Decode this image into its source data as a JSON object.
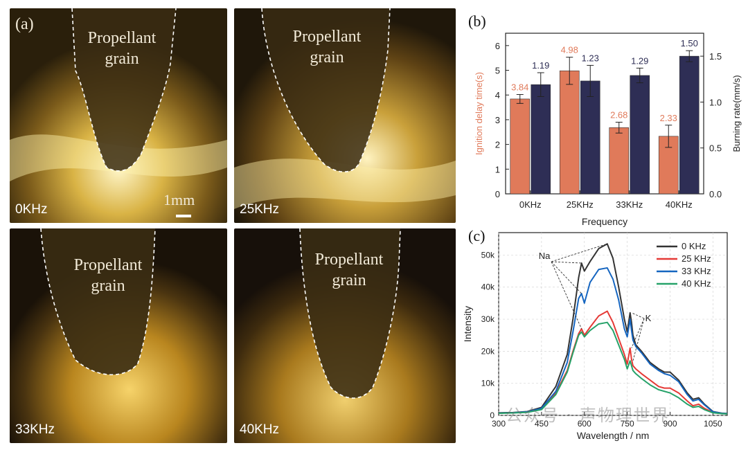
{
  "panel_a": {
    "letter": "(a)",
    "grain_label_line1": "Propellant",
    "grain_label_line2": "grain",
    "scale_label": "1mm",
    "photos": [
      {
        "frequency": "0KHz"
      },
      {
        "frequency": "25KHz"
      },
      {
        "frequency": "33KHz"
      },
      {
        "frequency": "40KHz"
      }
    ]
  },
  "chart_data": [
    {
      "panel": "(b)",
      "type": "bar",
      "categories": [
        "0KHz",
        "25KHz",
        "33KHz",
        "40KHz"
      ],
      "xlabel": "Frequency",
      "ylabel_left": "Ignition delay time(s)",
      "ylabel_right": "Burning rate(mm/s)",
      "ylim_left": [
        0,
        6.5
      ],
      "ylim_right": [
        0,
        1.75
      ],
      "yticks_left": [
        "0",
        "1",
        "2",
        "3",
        "4",
        "5",
        "6"
      ],
      "yticks_right": [
        "0.0",
        "0.5",
        "1.0",
        "1.5"
      ],
      "series": [
        {
          "name": "Ignition delay time",
          "axis": "left",
          "color": "#e07a5a",
          "values": [
            3.84,
            4.98,
            2.68,
            2.33
          ],
          "labels": [
            "3.84",
            "4.98",
            "2.68",
            "2.33"
          ],
          "errors": [
            0.18,
            0.55,
            0.22,
            0.45
          ]
        },
        {
          "name": "Burning rate",
          "axis": "right",
          "color": "#2e2e55",
          "values": [
            1.19,
            1.23,
            1.29,
            1.5
          ],
          "labels": [
            "1.19",
            "1.23",
            "1.29",
            "1.50"
          ],
          "errors": [
            0.13,
            0.17,
            0.08,
            0.06
          ]
        }
      ]
    },
    {
      "panel": "(c)",
      "type": "line",
      "xlabel": "Wavelength / nm",
      "ylabel": "Intensity",
      "xlim": [
        300,
        1100
      ],
      "ylim": [
        0,
        57000
      ],
      "xticks": [
        "300",
        "450",
        "600",
        "750",
        "900",
        "1050"
      ],
      "yticks": [
        "0",
        "10k",
        "20k",
        "30k",
        "40k",
        "50k"
      ],
      "legend_position": "top-right",
      "annotations": [
        "Na",
        "K"
      ],
      "x": [
        300,
        350,
        400,
        450,
        500,
        540,
        560,
        580,
        590,
        600,
        620,
        650,
        680,
        700,
        720,
        740,
        750,
        760,
        765,
        770,
        780,
        800,
        830,
        860,
        880,
        900,
        930,
        960,
        980,
        1000,
        1020,
        1050,
        1080,
        1100
      ],
      "series": [
        {
          "name": "0 KHz",
          "color": "#333333",
          "values": [
            800,
            900,
            1200,
            2500,
            9000,
            19000,
            30000,
            43000,
            47500,
            45000,
            48000,
            52000,
            53500,
            49000,
            40000,
            30000,
            26000,
            32000,
            29000,
            25000,
            22000,
            20000,
            16500,
            14500,
            13500,
            13500,
            11000,
            7000,
            5000,
            5500,
            3500,
            1200,
            700,
            600
          ]
        },
        {
          "name": "25 KHz",
          "color": "#e53935",
          "values": [
            700,
            800,
            1000,
            2000,
            7000,
            14000,
            20000,
            25500,
            27000,
            25000,
            27500,
            31000,
            32500,
            29000,
            24000,
            19000,
            16000,
            21000,
            17500,
            15500,
            14500,
            13000,
            11000,
            9000,
            8500,
            8500,
            7000,
            4500,
            3000,
            3500,
            2200,
            900,
            600,
            500
          ]
        },
        {
          "name": "33 KHz",
          "color": "#1565c0",
          "values": [
            700,
            800,
            1100,
            2200,
            7500,
            16500,
            26000,
            36500,
            38000,
            35000,
            41500,
            45500,
            46000,
            42500,
            36000,
            27000,
            24500,
            30000,
            26500,
            23500,
            21500,
            19500,
            16000,
            14000,
            13000,
            12500,
            10500,
            6500,
            4500,
            5000,
            3300,
            1100,
            650,
            550
          ]
        },
        {
          "name": "40 KHz",
          "color": "#26a269",
          "values": [
            650,
            750,
            950,
            1800,
            6500,
            13500,
            19500,
            25000,
            26000,
            24500,
            26500,
            28500,
            29000,
            26500,
            22000,
            17500,
            14500,
            17000,
            15500,
            14000,
            13000,
            11500,
            9500,
            8000,
            7500,
            7000,
            5500,
            3500,
            2500,
            2800,
            1800,
            800,
            550,
            450
          ]
        }
      ]
    }
  ],
  "watermark": "公众号 · 声物理世界"
}
